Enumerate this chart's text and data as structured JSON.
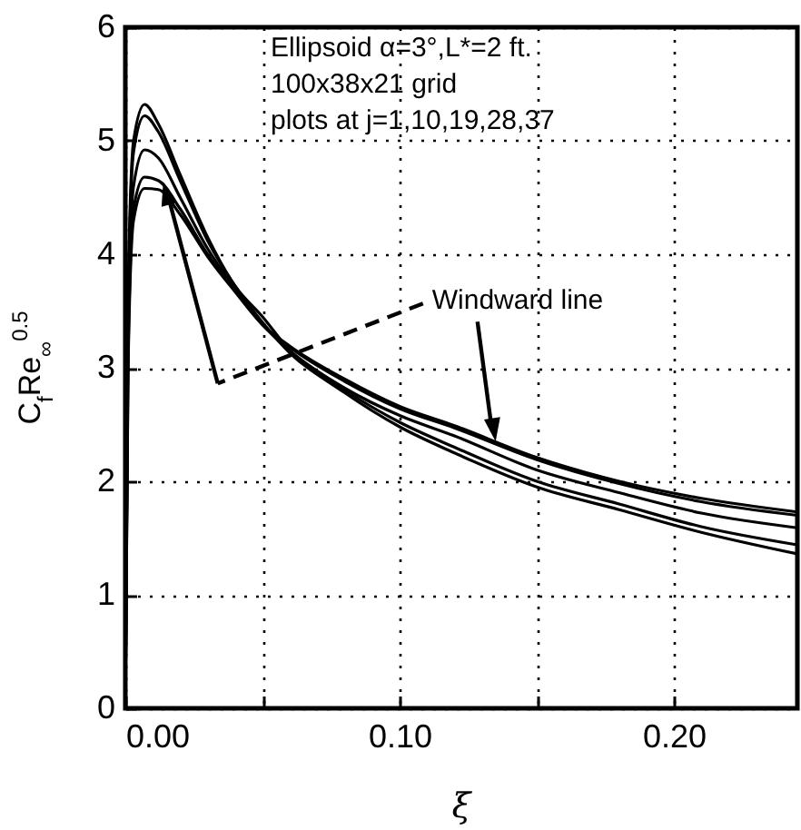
{
  "chart_data": {
    "type": "line",
    "xlabel": "ξ",
    "ylabel": "C$_{f}$Re$_{∞}$$^{0.5}$",
    "annotations": [
      "Ellipsoid α=3°,L*=2 ft.",
      "100x38x21 grid",
      "plots at j=1,10,19,28,37",
      {
        "text": "Windward line",
        "x": 0.135,
        "y": 2.35
      }
    ],
    "x": [
      0,
      0.001,
      0.003,
      0.007,
      0.012,
      0.02,
      0.03,
      0.04,
      0.05,
      0.06,
      0.08,
      0.1,
      0.12,
      0.15,
      0.18,
      0.21,
      0.245
    ],
    "series": [
      {
        "color": "#000000",
        "values": [
          0,
          3.6,
          5.0,
          5.32,
          5.15,
          4.7,
          4.15,
          3.72,
          3.45,
          3.15,
          2.78,
          2.48,
          2.25,
          1.95,
          1.75,
          1.55,
          1.36
        ]
      },
      {
        "color": "#000000",
        "values": [
          0,
          3.5,
          4.9,
          5.22,
          5.08,
          4.65,
          4.12,
          3.72,
          3.4,
          3.13,
          2.8,
          2.52,
          2.3,
          2.0,
          1.8,
          1.6,
          1.44
        ]
      },
      {
        "color": "#000000",
        "values": [
          0,
          3.3,
          4.6,
          4.92,
          4.85,
          4.5,
          4.05,
          3.7,
          3.38,
          3.15,
          2.82,
          2.58,
          2.4,
          2.1,
          1.9,
          1.72,
          1.59
        ]
      },
      {
        "color": "#000000",
        "values": [
          0,
          3.1,
          4.4,
          4.68,
          4.65,
          4.4,
          4.0,
          3.68,
          3.38,
          3.18,
          2.88,
          2.64,
          2.47,
          2.19,
          1.98,
          1.82,
          1.7
        ]
      },
      {
        "color": "#000000",
        "values": [
          0,
          3.0,
          4.3,
          4.58,
          4.57,
          4.35,
          3.98,
          3.67,
          3.38,
          3.19,
          2.9,
          2.66,
          2.49,
          2.21,
          2.0,
          1.85,
          1.73
        ]
      }
    ],
    "xlim": [
      0,
      0.245
    ],
    "xticks": [
      {
        "value": 0,
        "label": "0.00"
      },
      {
        "value": 0.05,
        "label": null
      },
      {
        "value": 0.1,
        "label": "0.10"
      },
      {
        "value": 0.15,
        "label": null
      },
      {
        "value": 0.2,
        "label": "0.20"
      }
    ],
    "ylim": [
      0,
      6
    ],
    "yticks": [
      0,
      1,
      2,
      3,
      4,
      5,
      6
    ],
    "grid": true,
    "line_style": "solid",
    "marker": "none"
  }
}
